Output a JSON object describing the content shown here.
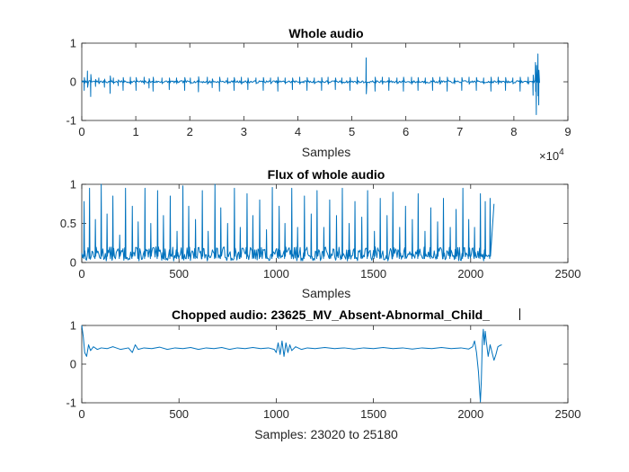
{
  "colors": {
    "line": "#0072bd",
    "axis": "#262626",
    "background": "#ffffff"
  },
  "chart_data": [
    {
      "type": "line",
      "title": "Whole audio",
      "xlabel": "Samples",
      "ylabel": "",
      "exponent_label": "×10",
      "exponent_power": "4",
      "xlim": [
        0,
        90000
      ],
      "ylim": [
        -1,
        1
      ],
      "xtick_values": [
        0,
        10000,
        20000,
        30000,
        40000,
        50000,
        60000,
        70000,
        80000,
        90000
      ],
      "xtick_labels": [
        "0",
        "1",
        "2",
        "3",
        "4",
        "5",
        "6",
        "7",
        "8",
        "9"
      ],
      "ytick_values": [
        -1,
        0,
        1
      ],
      "ytick_labels": [
        "-1",
        "0",
        "1"
      ],
      "grid": false,
      "x_end": 84800,
      "baseline_noise": 0.03,
      "events": [
        [
          500,
          -0.22
        ],
        [
          1000,
          0.28
        ],
        [
          1700,
          -0.38
        ],
        [
          2500,
          -0.12
        ],
        [
          3100,
          0.1
        ],
        [
          4200,
          -0.14
        ],
        [
          5200,
          -0.3
        ],
        [
          5900,
          0.1
        ],
        [
          6800,
          -0.1
        ],
        [
          7600,
          -0.22
        ],
        [
          9000,
          0.12
        ],
        [
          10100,
          -0.22
        ],
        [
          11500,
          0.12
        ],
        [
          12400,
          -0.16
        ],
        [
          13200,
          -0.24
        ],
        [
          14800,
          0.1
        ],
        [
          16200,
          -0.2
        ],
        [
          17500,
          0.1
        ],
        [
          19000,
          -0.22
        ],
        [
          20100,
          0.1
        ],
        [
          21600,
          -0.26
        ],
        [
          23200,
          0.12
        ],
        [
          24100,
          -0.15
        ],
        [
          25500,
          -0.24
        ],
        [
          27000,
          0.1
        ],
        [
          28200,
          -0.22
        ],
        [
          29600,
          0.12
        ],
        [
          30800,
          -0.2
        ],
        [
          32300,
          0.1
        ],
        [
          33600,
          -0.22
        ],
        [
          35000,
          0.1
        ],
        [
          36300,
          -0.24
        ],
        [
          37600,
          0.1
        ],
        [
          39000,
          -0.2
        ],
        [
          40400,
          0.12
        ],
        [
          41700,
          -0.22
        ],
        [
          43000,
          0.1
        ],
        [
          44400,
          -0.22
        ],
        [
          45600,
          0.12
        ],
        [
          46900,
          -0.2
        ],
        [
          48200,
          0.1
        ],
        [
          49700,
          -0.22
        ],
        [
          51000,
          0.12
        ],
        [
          52600,
          -0.72
        ],
        [
          52700,
          0.62
        ],
        [
          54300,
          -0.24
        ],
        [
          55600,
          0.12
        ],
        [
          56900,
          -0.22
        ],
        [
          58300,
          0.1
        ],
        [
          59600,
          -0.24
        ],
        [
          61000,
          0.12
        ],
        [
          62300,
          -0.22
        ],
        [
          63600,
          0.1
        ],
        [
          65000,
          -0.22
        ],
        [
          66300,
          0.12
        ],
        [
          67700,
          -0.24
        ],
        [
          69000,
          0.1
        ],
        [
          70400,
          -0.22
        ],
        [
          71700,
          0.12
        ],
        [
          73100,
          -0.22
        ],
        [
          74400,
          0.1
        ],
        [
          75800,
          -0.24
        ],
        [
          77100,
          0.12
        ],
        [
          78500,
          -0.22
        ],
        [
          79800,
          0.1
        ],
        [
          81200,
          -0.24
        ],
        [
          82600,
          0.12
        ],
        [
          83600,
          -0.35
        ],
        [
          84000,
          0.5
        ],
        [
          84200,
          -0.85
        ],
        [
          84400,
          0.72
        ],
        [
          84600,
          -0.6
        ]
      ]
    },
    {
      "type": "line",
      "title": "Flux of whole audio",
      "xlabel": "Samples",
      "ylabel": "",
      "xlim": [
        0,
        2500
      ],
      "ylim": [
        0,
        1
      ],
      "xtick_values": [
        0,
        500,
        1000,
        1500,
        2000,
        2500
      ],
      "xtick_labels": [
        "0",
        "500",
        "1000",
        "1500",
        "2000",
        "2500"
      ],
      "ytick_values": [
        0,
        0.5,
        1
      ],
      "ytick_labels": [
        "0",
        "0.5",
        "1"
      ],
      "grid": false,
      "x_end": 2120,
      "peaks": [
        [
          12,
          0.78
        ],
        [
          40,
          0.95
        ],
        [
          70,
          0.55
        ],
        [
          100,
          1
        ],
        [
          130,
          0.62
        ],
        [
          160,
          0.85
        ],
        [
          195,
          0.35
        ],
        [
          225,
          0.95
        ],
        [
          260,
          0.72
        ],
        [
          290,
          0.52
        ],
        [
          325,
          0.95
        ],
        [
          355,
          0.5
        ],
        [
          390,
          0.92
        ],
        [
          420,
          0.6
        ],
        [
          455,
          0.85
        ],
        [
          490,
          0.4
        ],
        [
          520,
          0.98
        ],
        [
          550,
          0.72
        ],
        [
          585,
          0.55
        ],
        [
          620,
          0.92
        ],
        [
          650,
          0.4
        ],
        [
          685,
          1
        ],
        [
          715,
          0.7
        ],
        [
          750,
          0.5
        ],
        [
          785,
          0.95
        ],
        [
          815,
          0.45
        ],
        [
          850,
          0.88
        ],
        [
          880,
          0.6
        ],
        [
          915,
          0.8
        ],
        [
          950,
          0.42
        ],
        [
          980,
          0.96
        ],
        [
          1015,
          0.72
        ],
        [
          1045,
          0.5
        ],
        [
          1080,
          0.95
        ],
        [
          1110,
          0.45
        ],
        [
          1145,
          0.85
        ],
        [
          1180,
          0.62
        ],
        [
          1210,
          0.92
        ],
        [
          1245,
          0.45
        ],
        [
          1275,
          0.8
        ],
        [
          1310,
          0.6
        ],
        [
          1340,
          0.95
        ],
        [
          1375,
          0.5
        ],
        [
          1405,
          0.78
        ],
        [
          1440,
          0.58
        ],
        [
          1470,
          0.92
        ],
        [
          1505,
          0.4
        ],
        [
          1535,
          0.82
        ],
        [
          1570,
          0.6
        ],
        [
          1600,
          0.9
        ],
        [
          1635,
          0.45
        ],
        [
          1665,
          0.72
        ],
        [
          1700,
          0.55
        ],
        [
          1730,
          0.88
        ],
        [
          1765,
          0.4
        ],
        [
          1795,
          0.7
        ],
        [
          1830,
          0.52
        ],
        [
          1860,
          0.82
        ],
        [
          1895,
          0.45
        ],
        [
          1925,
          0.68
        ],
        [
          1960,
          0.95
        ],
        [
          1990,
          0.55
        ],
        [
          2020,
          0.45
        ],
        [
          2050,
          0.88
        ],
        [
          2075,
          0.78
        ],
        [
          2100,
          0.82
        ]
      ]
    },
    {
      "type": "line",
      "title": "Chopped audio: 23625_MV_Absent-Abnormal_Child_",
      "xlabel": "Samples: 23020 to 25180",
      "ylabel": "",
      "xlim": [
        0,
        2500
      ],
      "ylim": [
        -1,
        1
      ],
      "xtick_values": [
        0,
        500,
        1000,
        1500,
        2000,
        2500
      ],
      "xtick_labels": [
        "0",
        "500",
        "1000",
        "1500",
        "2000",
        "2500"
      ],
      "ytick_values": [
        -1,
        0,
        1
      ],
      "ytick_labels": [
        "-1",
        "0",
        "1"
      ],
      "grid": false,
      "x_end": 2160,
      "points": [
        [
          0,
          1
        ],
        [
          8,
          0.7
        ],
        [
          15,
          0.3
        ],
        [
          25,
          0.2
        ],
        [
          35,
          0.5
        ],
        [
          45,
          0.35
        ],
        [
          60,
          0.45
        ],
        [
          80,
          0.38
        ],
        [
          100,
          0.42
        ],
        [
          130,
          0.4
        ],
        [
          160,
          0.45
        ],
        [
          200,
          0.38
        ],
        [
          240,
          0.42
        ],
        [
          260,
          0.3
        ],
        [
          275,
          0.5
        ],
        [
          290,
          0.38
        ],
        [
          320,
          0.42
        ],
        [
          360,
          0.4
        ],
        [
          400,
          0.44
        ],
        [
          440,
          0.38
        ],
        [
          480,
          0.42
        ],
        [
          520,
          0.4
        ],
        [
          560,
          0.43
        ],
        [
          600,
          0.38
        ],
        [
          640,
          0.42
        ],
        [
          680,
          0.4
        ],
        [
          720,
          0.43
        ],
        [
          760,
          0.38
        ],
        [
          800,
          0.42
        ],
        [
          840,
          0.4
        ],
        [
          880,
          0.43
        ],
        [
          920,
          0.4
        ],
        [
          960,
          0.42
        ],
        [
          990,
          0.38
        ],
        [
          1000,
          0.3
        ],
        [
          1010,
          0.55
        ],
        [
          1020,
          0.25
        ],
        [
          1030,
          0.6
        ],
        [
          1040,
          0.2
        ],
        [
          1050,
          0.55
        ],
        [
          1060,
          0.3
        ],
        [
          1070,
          0.5
        ],
        [
          1080,
          0.35
        ],
        [
          1100,
          0.45
        ],
        [
          1130,
          0.38
        ],
        [
          1160,
          0.42
        ],
        [
          1200,
          0.4
        ],
        [
          1250,
          0.43
        ],
        [
          1300,
          0.4
        ],
        [
          1350,
          0.42
        ],
        [
          1400,
          0.39
        ],
        [
          1450,
          0.42
        ],
        [
          1500,
          0.4
        ],
        [
          1550,
          0.43
        ],
        [
          1600,
          0.4
        ],
        [
          1650,
          0.42
        ],
        [
          1700,
          0.39
        ],
        [
          1750,
          0.42
        ],
        [
          1800,
          0.4
        ],
        [
          1850,
          0.43
        ],
        [
          1900,
          0.4
        ],
        [
          1950,
          0.42
        ],
        [
          1990,
          0.39
        ],
        [
          2010,
          0.45
        ],
        [
          2020,
          0.6
        ],
        [
          2030,
          0.3
        ],
        [
          2040,
          -0.2
        ],
        [
          2045,
          -0.6
        ],
        [
          2050,
          -0.98
        ],
        [
          2055,
          -0.4
        ],
        [
          2060,
          0.6
        ],
        [
          2065,
          0.9
        ],
        [
          2070,
          0.5
        ],
        [
          2075,
          0.85
        ],
        [
          2080,
          0.6
        ],
        [
          2090,
          0.2
        ],
        [
          2100,
          0.5
        ],
        [
          2110,
          0.3
        ],
        [
          2120,
          0.1
        ],
        [
          2130,
          0.25
        ],
        [
          2140,
          0.45
        ],
        [
          2150,
          0.48
        ],
        [
          2160,
          0.5
        ]
      ]
    }
  ]
}
